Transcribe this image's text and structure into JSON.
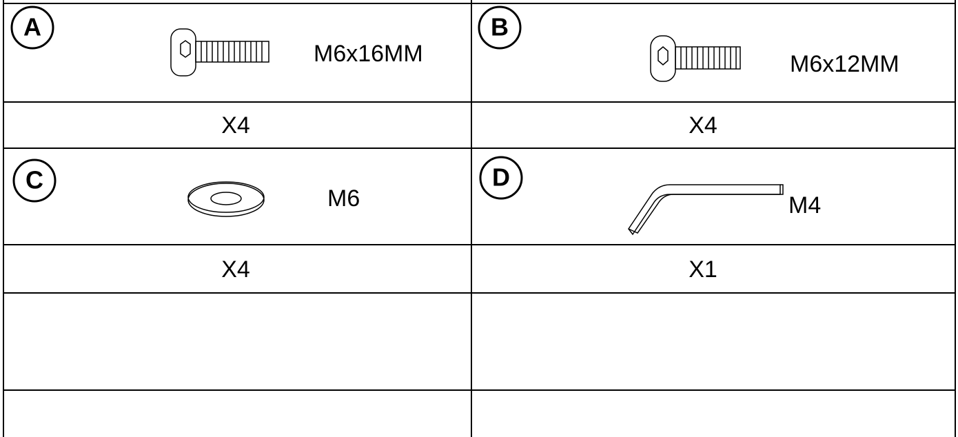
{
  "parts": [
    {
      "letter": "A",
      "spec": "M6x16MM",
      "quantity": "X4"
    },
    {
      "letter": "B",
      "spec": "M6x12MM",
      "quantity": "X4"
    },
    {
      "letter": "C",
      "spec": "M6",
      "quantity": "X4"
    },
    {
      "letter": "D",
      "spec": "M4",
      "quantity": "X1"
    }
  ]
}
